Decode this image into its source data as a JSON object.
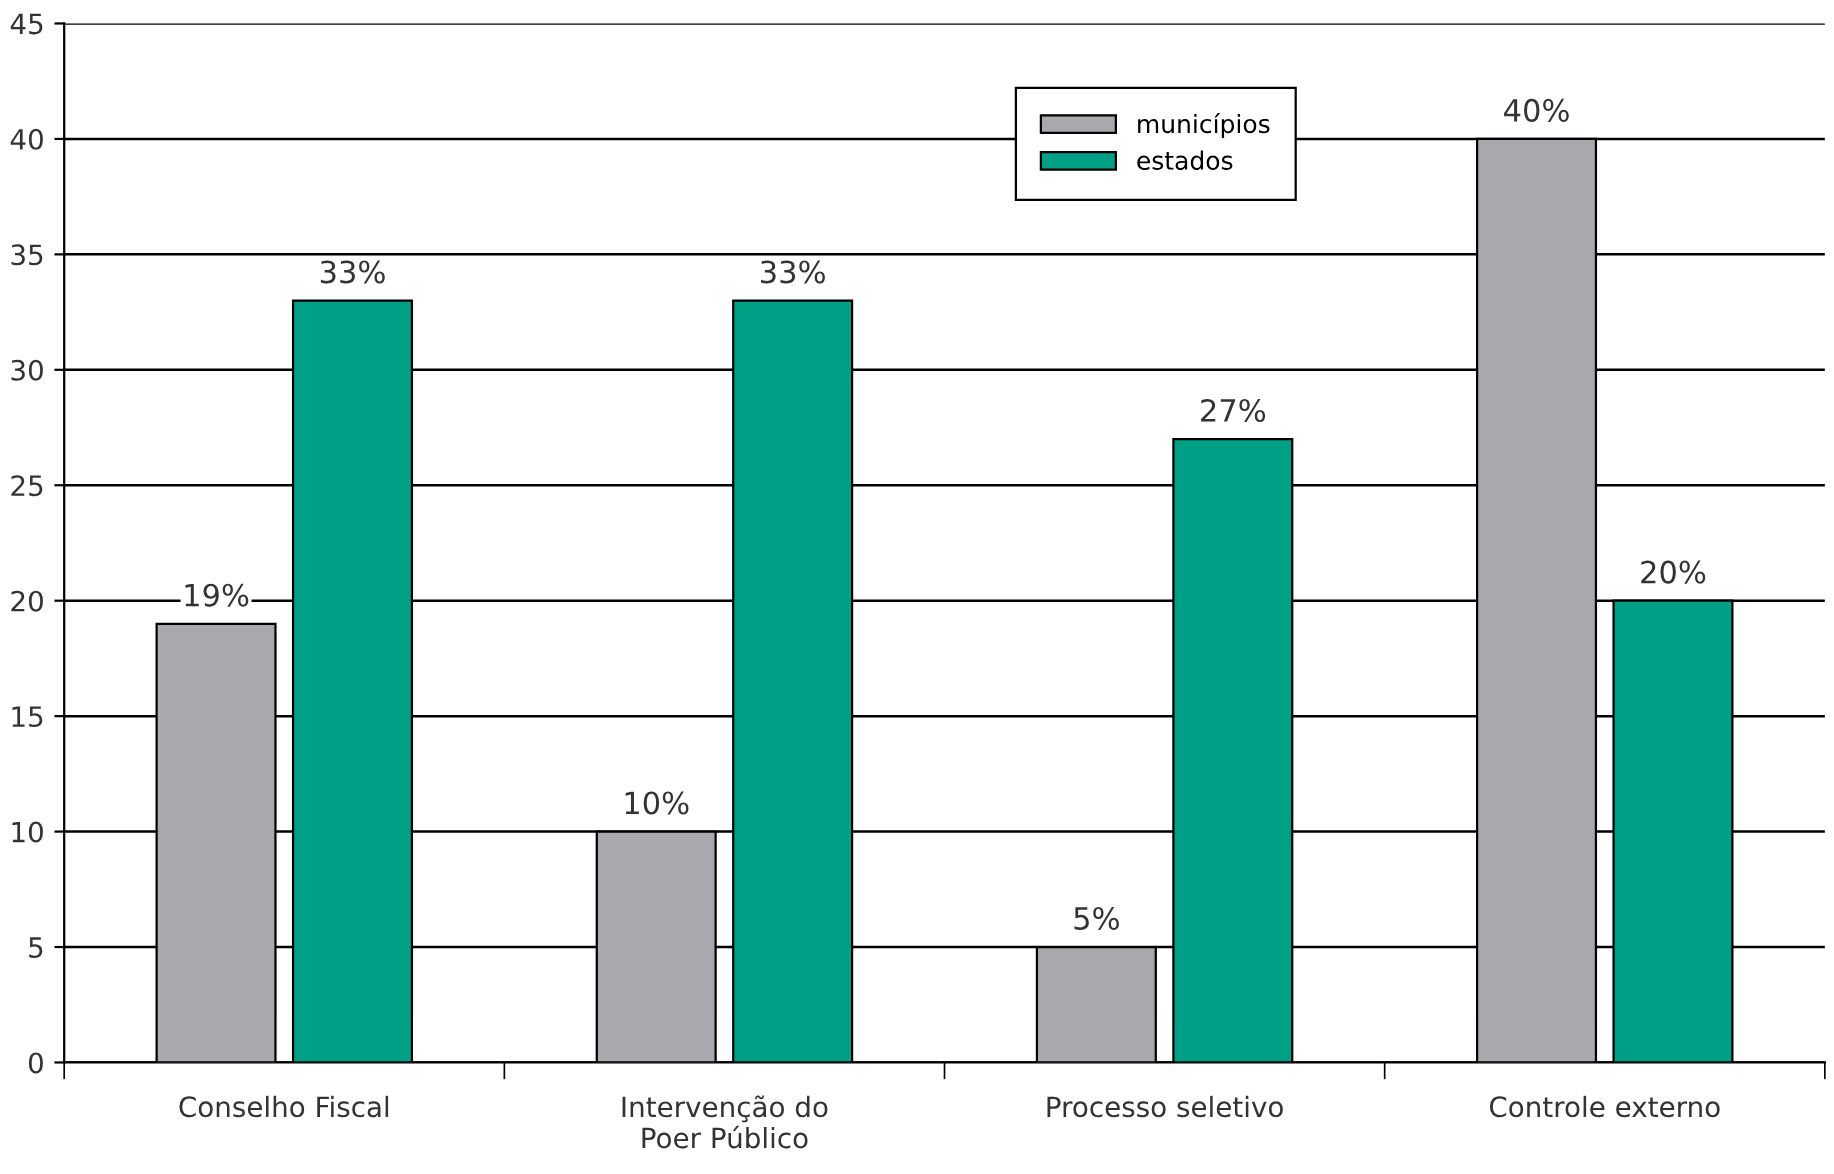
{
  "chart_data": {
    "type": "bar",
    "categories": [
      "Conselho Fiscal",
      "Intervenção do\nPoer Público",
      "Processo seletivo",
      "Controle externo"
    ],
    "series": [
      {
        "name": "municípios",
        "color": "#a7a9ac",
        "values": [
          19,
          10,
          5,
          40
        ],
        "value_labels": [
          "19%",
          "10%",
          "5%",
          "40%"
        ]
      },
      {
        "name": "estados",
        "color": "#00a087",
        "values": [
          33,
          33,
          27,
          20
        ],
        "value_labels": [
          "33%",
          "33%",
          "27%",
          "20%"
        ]
      }
    ],
    "ylim": [
      0,
      45
    ],
    "yticks": [
      0,
      5,
      10,
      15,
      20,
      25,
      30,
      35,
      40,
      45
    ],
    "grid": "y",
    "legend": "top"
  }
}
